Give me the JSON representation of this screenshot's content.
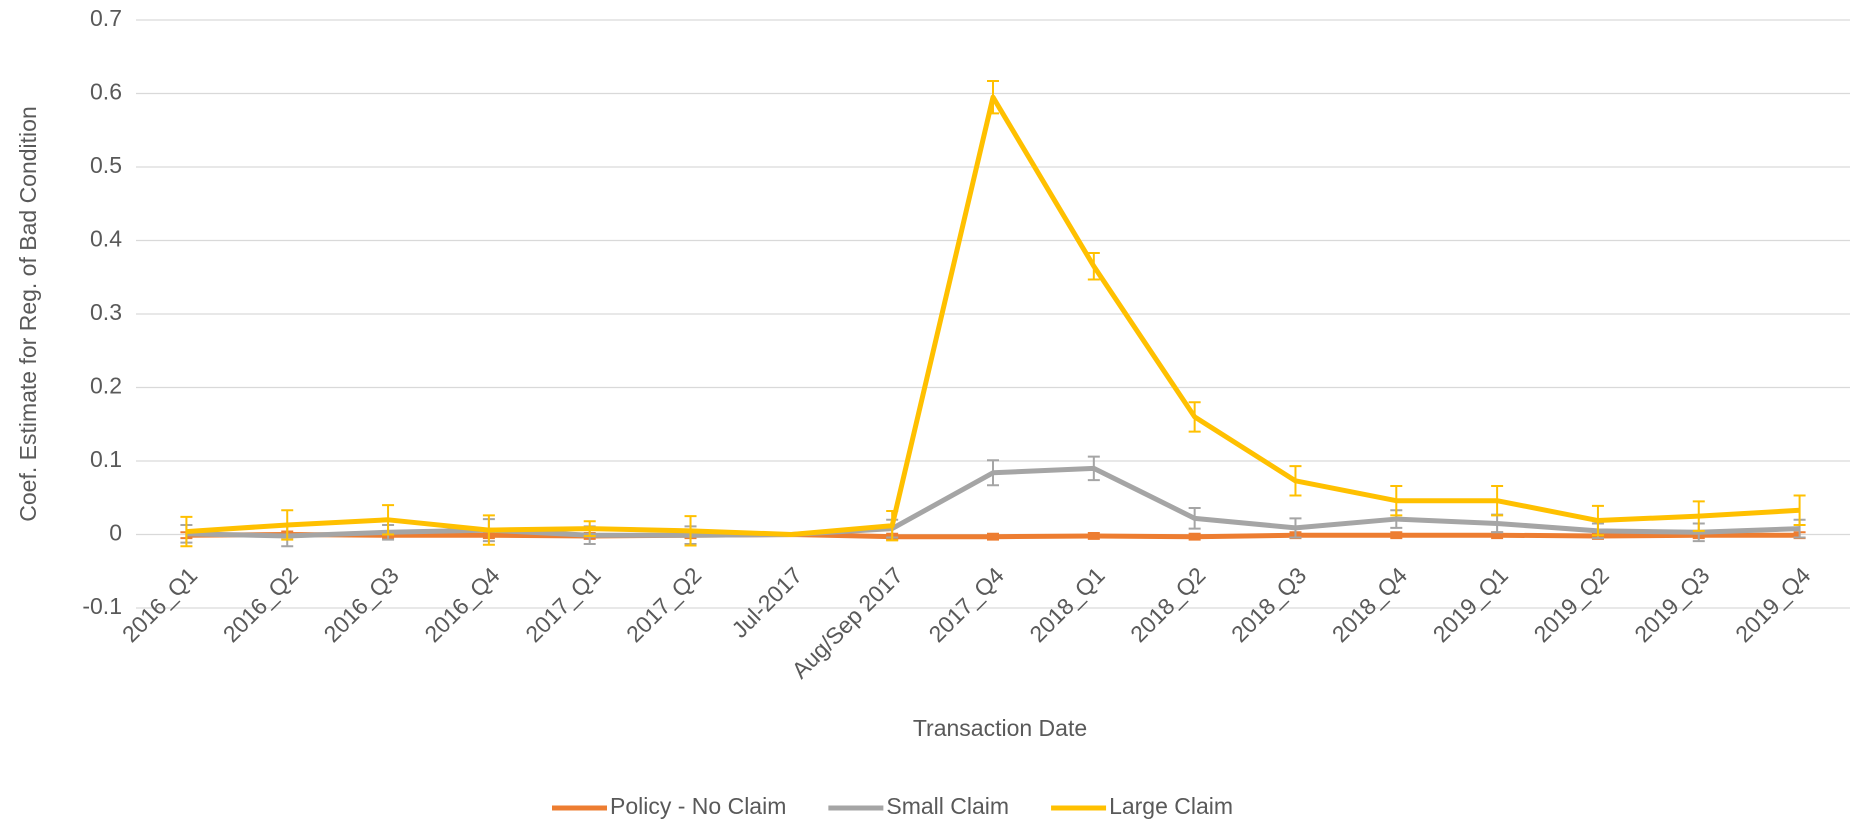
{
  "chart_data": {
    "type": "line",
    "x_label": "Transaction Date",
    "y_label": "Coef. Estimate for Reg. of Bad Condition",
    "categories": [
      "2016_Q1",
      "2016_Q2",
      "2016_Q3",
      "2016_Q4",
      "2017_Q1",
      "2017_Q2",
      "Jul-2017",
      "Aug/Sep 2017",
      "2017_Q4",
      "2018_Q1",
      "2018_Q2",
      "2018_Q3",
      "2018_Q4",
      "2019_Q1",
      "2019_Q2",
      "2019_Q3",
      "2019_Q4"
    ],
    "series": [
      {
        "name": "Policy - No Claim",
        "color": "#ED7D31",
        "values": [
          -0.001,
          0,
          -0.001,
          -0.001,
          -0.002,
          -0.001,
          0,
          -0.003,
          -0.003,
          -0.002,
          -0.003,
          -0.001,
          -0.001,
          -0.001,
          -0.002,
          -0.001,
          -0.001
        ],
        "errors": [
          0.004,
          0.004,
          0.004,
          0.004,
          0.004,
          0.004,
          0,
          0.004,
          0.004,
          0.004,
          0.004,
          0.004,
          0.004,
          0.004,
          0.004,
          0.004,
          0.004
        ]
      },
      {
        "name": "Small Claim",
        "color": "#A5A5A5",
        "values": [
          0.001,
          -0.002,
          0.003,
          0.006,
          -0.001,
          -0.001,
          0,
          0.008,
          0.084,
          0.09,
          0.022,
          0.009,
          0.021,
          0.015,
          0.005,
          0.003,
          0.008
        ],
        "errors": [
          0.012,
          0.014,
          0.01,
          0.015,
          0.012,
          0.012,
          0,
          0.012,
          0.017,
          0.016,
          0.014,
          0.013,
          0.012,
          0.012,
          0.01,
          0.012,
          0.012
        ]
      },
      {
        "name": "Large Claim",
        "color": "#FFC000",
        "values": [
          0.004,
          0.013,
          0.02,
          0.006,
          0.008,
          0.005,
          0,
          0.012,
          0.595,
          0.365,
          0.16,
          0.073,
          0.046,
          0.046,
          0.019,
          0.025,
          0.033
        ],
        "errors": [
          0.02,
          0.02,
          0.02,
          0.02,
          0.01,
          0.02,
          0,
          0.02,
          0.022,
          0.018,
          0.02,
          0.02,
          0.02,
          0.02,
          0.02,
          0.02,
          0.02
        ]
      }
    ],
    "ylim": [
      -0.1,
      0.7
    ],
    "yticks": [
      -0.1,
      0,
      0.1,
      0.2,
      0.3,
      0.4,
      0.5,
      0.6,
      0.7
    ],
    "grid": true,
    "legend": "bottom"
  }
}
